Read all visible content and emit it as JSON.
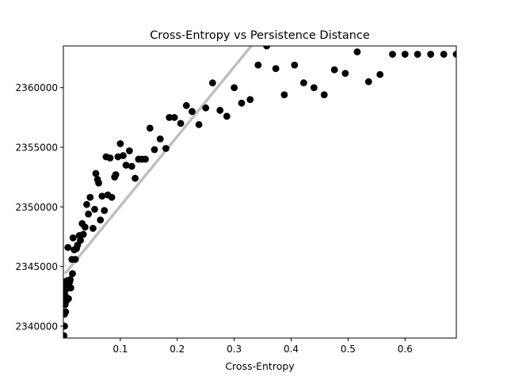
{
  "chart_data": {
    "type": "scatter",
    "title": "Cross-Entropy vs Persistence Distance",
    "xlabel": "Cross-Entropy",
    "ylabel": "",
    "xlim": [
      0.0,
      0.69
    ],
    "ylim": [
      2339000,
      2363500
    ],
    "xticks": [
      0.1,
      0.2,
      0.3,
      0.4,
      0.5,
      0.6
    ],
    "xtick_labels": [
      "0.1",
      "0.2",
      "0.3",
      "0.4",
      "0.5",
      "0.6"
    ],
    "yticks": [
      2340000,
      2345000,
      2350000,
      2355000,
      2360000
    ],
    "ytick_labels": [
      "2340000",
      "2345000",
      "2350000",
      "2355000",
      "2360000"
    ],
    "grid": false,
    "colors": {
      "points": "#000000",
      "trend": "#bfbfbf"
    },
    "trend_line": {
      "x": [
        0.003,
        0.33
      ],
      "y": [
        2344400,
        2363500
      ]
    },
    "series": [
      {
        "x": [
          0.001,
          0.002,
          0.002,
          0.003,
          0.003,
          0.004,
          0.004,
          0.005,
          0.005,
          0.006,
          0.008,
          0.009,
          0.01,
          0.011,
          0.012,
          0.013,
          0.015,
          0.016,
          0.017,
          0.019,
          0.021,
          0.023,
          0.025,
          0.028,
          0.03,
          0.033,
          0.035,
          0.038,
          0.041,
          0.044,
          0.047,
          0.052,
          0.055,
          0.057,
          0.06,
          0.062,
          0.065,
          0.068,
          0.072,
          0.075,
          0.078,
          0.082,
          0.085,
          0.09,
          0.092,
          0.096,
          0.1,
          0.105,
          0.11,
          0.116,
          0.12,
          0.126,
          0.132,
          0.138,
          0.144,
          0.152,
          0.16,
          0.17,
          0.18,
          0.186,
          0.195,
          0.206,
          0.216,
          0.226,
          0.238,
          0.25,
          0.262,
          0.275,
          0.287,
          0.3,
          0.313,
          0.328,
          0.342,
          0.357,
          0.373,
          0.388,
          0.406,
          0.422,
          0.44,
          0.458,
          0.476,
          0.495,
          0.516,
          0.536,
          0.556,
          0.578,
          0.6,
          0.622,
          0.645,
          0.668,
          0.69
        ],
        "y": [
          2339200,
          2340000,
          2341000,
          2341800,
          2342600,
          2343500,
          2341200,
          2343100,
          2342100,
          2343800,
          2346600,
          2342300,
          2343300,
          2343700,
          2343900,
          2343200,
          2345600,
          2344400,
          2347400,
          2346400,
          2345600,
          2346500,
          2346800,
          2347600,
          2347200,
          2348600,
          2347700,
          2348300,
          2350200,
          2349400,
          2350800,
          2348200,
          2349800,
          2352800,
          2352300,
          2352000,
          2348900,
          2350900,
          2349700,
          2354200,
          2351000,
          2354100,
          2350800,
          2352500,
          2352700,
          2354200,
          2355300,
          2354300,
          2353500,
          2354700,
          2353400,
          2352400,
          2354000,
          2354000,
          2354000,
          2356600,
          2354800,
          2355700,
          2354900,
          2357500,
          2357500,
          2357000,
          2358500,
          2358000,
          2356900,
          2358300,
          2360400,
          2358100,
          2357600,
          2360000,
          2358700,
          2359000,
          2361900,
          2363500,
          2361600,
          2359400,
          2361900,
          2360400,
          2360000,
          2359400,
          2361500,
          2361200,
          2363000,
          2360500,
          2361100,
          2362800,
          2362800,
          2362800,
          2362800,
          2362800,
          2362800
        ]
      }
    ]
  }
}
